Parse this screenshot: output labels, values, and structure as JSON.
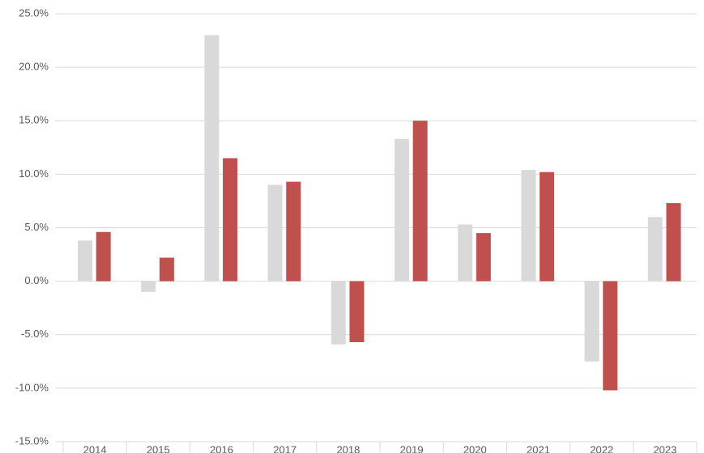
{
  "chart_data": {
    "type": "bar",
    "categories": [
      "2014",
      "2015",
      "2016",
      "2017",
      "2018",
      "2019",
      "2020",
      "2021",
      "2022",
      "2023"
    ],
    "series": [
      {
        "color": "#d9d9d9",
        "values": [
          3.8,
          -1.0,
          23.0,
          9.0,
          -5.9,
          13.3,
          5.3,
          10.4,
          -7.5,
          6.0
        ]
      },
      {
        "color": "#c0504d",
        "values": [
          4.6,
          2.2,
          11.5,
          9.3,
          -5.7,
          15.0,
          4.5,
          10.2,
          -10.2,
          7.3
        ]
      }
    ],
    "ylim": [
      -15,
      25
    ],
    "yticks": [
      {
        "value": -15,
        "label": "-15.0%"
      },
      {
        "value": -10,
        "label": "-10.0%"
      },
      {
        "value": -5,
        "label": "-5.0%"
      },
      {
        "value": 0,
        "label": "0.0%"
      },
      {
        "value": 5,
        "label": "5.0%"
      },
      {
        "value": 10,
        "label": "10.0%"
      },
      {
        "value": 15,
        "label": "15.0%"
      },
      {
        "value": 20,
        "label": "20.0%"
      },
      {
        "value": 25,
        "label": "25.0%"
      }
    ],
    "grid": true
  }
}
